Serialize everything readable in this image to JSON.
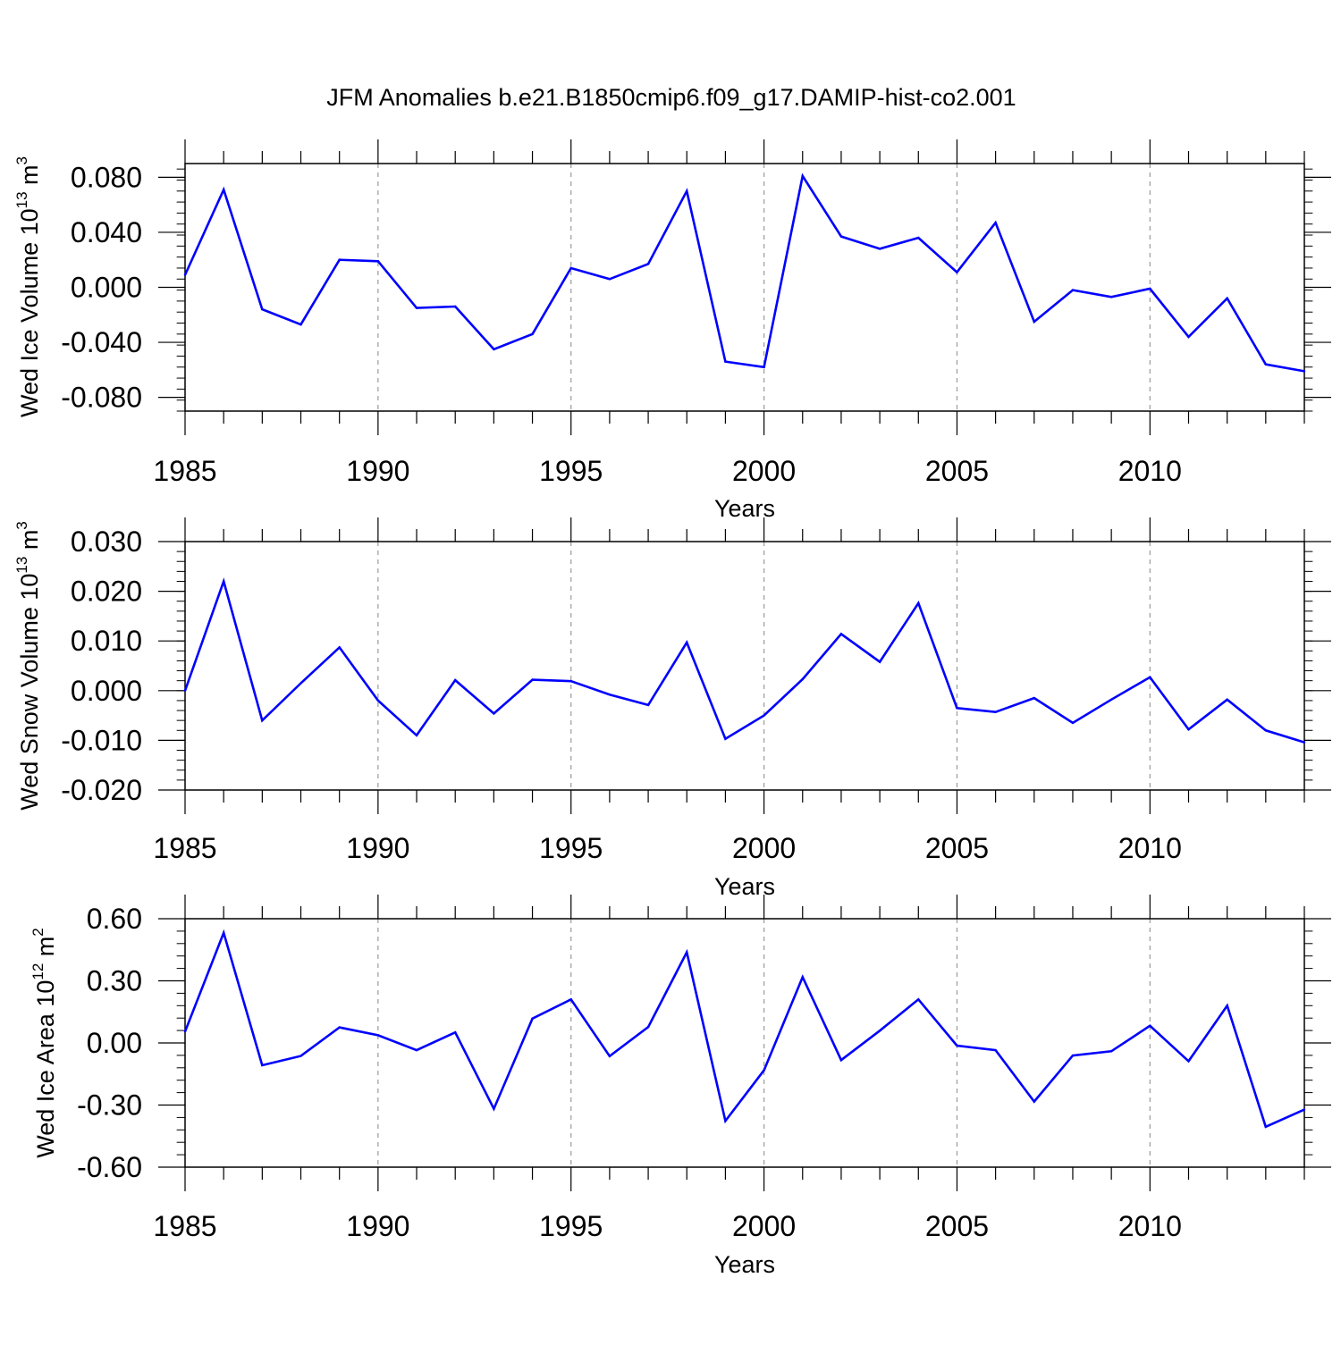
{
  "title": "JFM Anomalies b.e21.B1850cmip6.f09_g17.DAMIP-hist-co2.001",
  "line_color": "#0000ff",
  "chart_data": [
    {
      "type": "line",
      "ylabel": "Wed Ice Volume 10",
      "ylabel_exp": "13",
      "ylabel_unit": " m",
      "ylabel_unit_exp": "3",
      "xlabel": "Years",
      "xlim": [
        1985,
        2014
      ],
      "ylim": [
        -0.09,
        0.09
      ],
      "yticks": [
        -0.08,
        -0.04,
        0.0,
        0.04,
        0.08
      ],
      "ytick_labels": [
        "-0.080",
        "-0.040",
        "0.000",
        "0.040",
        "0.080"
      ],
      "xticks": [
        1985,
        1990,
        1995,
        2000,
        2005,
        2010
      ],
      "xtick_labels": [
        "1985",
        "1990",
        "1995",
        "2000",
        "2005",
        "2010"
      ],
      "grid": "vertical dashed at 1990, 1995, 2000, 2005, 2010",
      "x": [
        1985,
        1986,
        1987,
        1988,
        1989,
        1990,
        1991,
        1992,
        1993,
        1994,
        1995,
        1996,
        1997,
        1998,
        1999,
        2000,
        2001,
        2002,
        2003,
        2004,
        2005,
        2006,
        2007,
        2008,
        2009,
        2010,
        2011,
        2012,
        2013,
        2014
      ],
      "values": [
        0.009,
        0.071,
        -0.016,
        -0.027,
        0.02,
        0.019,
        -0.015,
        -0.014,
        -0.045,
        -0.034,
        0.014,
        0.006,
        0.017,
        0.07,
        -0.054,
        -0.058,
        0.081,
        0.037,
        0.028,
        0.036,
        0.011,
        0.047,
        -0.025,
        -0.002,
        -0.007,
        -0.001,
        -0.036,
        -0.008,
        -0.056,
        -0.061
      ]
    },
    {
      "type": "line",
      "ylabel": "Wed Snow Volume 10",
      "ylabel_exp": "13",
      "ylabel_unit": " m",
      "ylabel_unit_exp": "3",
      "xlabel": "Years",
      "xlim": [
        1985,
        2014
      ],
      "ylim": [
        -0.02,
        0.03
      ],
      "yticks": [
        -0.02,
        -0.01,
        0.0,
        0.01,
        0.02,
        0.03
      ],
      "ytick_labels": [
        "-0.020",
        "-0.010",
        "0.000",
        "0.010",
        "0.020",
        "0.030"
      ],
      "xticks": [
        1985,
        1990,
        1995,
        2000,
        2005,
        2010
      ],
      "xtick_labels": [
        "1985",
        "1990",
        "1995",
        "2000",
        "2005",
        "2010"
      ],
      "grid": "vertical dashed at 1990, 1995, 2000, 2005, 2010",
      "x": [
        1985,
        1986,
        1987,
        1988,
        1989,
        1990,
        1991,
        1992,
        1993,
        1994,
        1995,
        1996,
        1997,
        1998,
        1999,
        2000,
        2001,
        2002,
        2003,
        2004,
        2005,
        2006,
        2007,
        2008,
        2009,
        2010,
        2011,
        2012,
        2013,
        2014
      ],
      "values": [
        0.0,
        0.022,
        -0.006,
        0.0015,
        0.0087,
        -0.002,
        -0.009,
        0.0021,
        -0.0046,
        0.0022,
        0.0019,
        -0.0008,
        -0.0029,
        0.0097,
        -0.0097,
        -0.005,
        0.0023,
        0.0114,
        0.0058,
        0.0176,
        -0.0035,
        -0.0043,
        -0.0015,
        -0.0065,
        -0.0018,
        0.0027,
        -0.0078,
        -0.0018,
        -0.008,
        -0.0104
      ]
    },
    {
      "type": "line",
      "ylabel": "Wed Ice Area 10",
      "ylabel_exp": "12",
      "ylabel_unit": " m",
      "ylabel_unit_exp": "2",
      "xlabel": "Years",
      "xlim": [
        1985,
        2014
      ],
      "ylim": [
        -0.6,
        0.6
      ],
      "yticks": [
        -0.6,
        -0.3,
        0.0,
        0.3,
        0.6
      ],
      "ytick_labels": [
        "-0.60",
        "-0.30",
        "0.00",
        "0.30",
        "0.60"
      ],
      "xticks": [
        1985,
        1990,
        1995,
        2000,
        2005,
        2010
      ],
      "xtick_labels": [
        "1985",
        "1990",
        "1995",
        "2000",
        "2005",
        "2010"
      ],
      "grid": "vertical dashed at 1990, 1995, 2000, 2005, 2010",
      "x": [
        1985,
        1986,
        1987,
        1988,
        1989,
        1990,
        1991,
        1992,
        1993,
        1994,
        1995,
        1996,
        1997,
        1998,
        1999,
        2000,
        2001,
        2002,
        2003,
        2004,
        2005,
        2006,
        2007,
        2008,
        2009,
        2010,
        2011,
        2012,
        2013,
        2014
      ],
      "values": [
        0.055,
        0.532,
        -0.108,
        -0.063,
        0.075,
        0.037,
        -0.035,
        0.051,
        -0.318,
        0.118,
        0.21,
        -0.064,
        0.077,
        0.438,
        -0.377,
        -0.132,
        0.318,
        -0.083,
        0.059,
        0.21,
        -0.013,
        -0.035,
        -0.283,
        -0.061,
        -0.04,
        0.083,
        -0.088,
        0.18,
        -0.405,
        -0.322
      ]
    }
  ]
}
